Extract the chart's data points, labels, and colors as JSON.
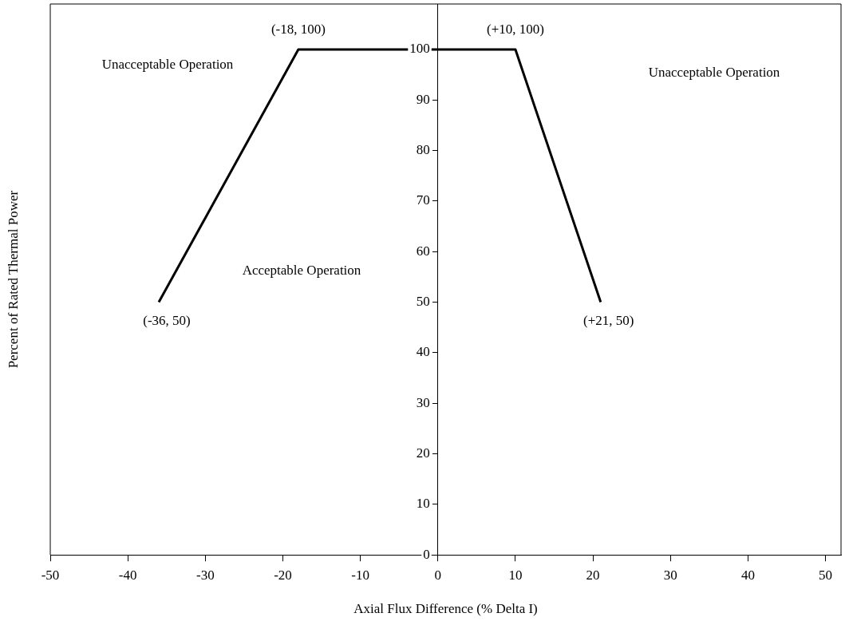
{
  "chart_data": {
    "type": "line",
    "xlabel": "Axial Flux Difference (% Delta I)",
    "ylabel": "Percent of Rated Thermal Power",
    "x": [
      -36,
      -18,
      10,
      21
    ],
    "series": [
      {
        "color": "#000000",
        "values": [
          50,
          100,
          100,
          50
        ]
      }
    ],
    "xlim": [
      -50,
      52
    ],
    "xticks": [
      -50,
      -40,
      -30,
      -20,
      -10,
      0,
      10,
      20,
      30,
      40,
      50
    ],
    "ylim": [
      0,
      109
    ],
    "yticks": [
      0,
      10,
      20,
      30,
      40,
      50,
      60,
      70,
      80,
      90,
      100
    ],
    "grid": false,
    "legend": false,
    "annotations": [
      {
        "text": "(-36, 50)",
        "x": -36,
        "y": 50
      },
      {
        "text": "(-18, 100)",
        "x": -18,
        "y": 100
      },
      {
        "text": "(+10, 100)",
        "x": 10,
        "y": 100
      },
      {
        "text": "(+21, 50)",
        "x": 21,
        "y": 50
      },
      "Unacceptable Operation",
      "Unacceptable Operation",
      "Acceptable Operation"
    ]
  }
}
